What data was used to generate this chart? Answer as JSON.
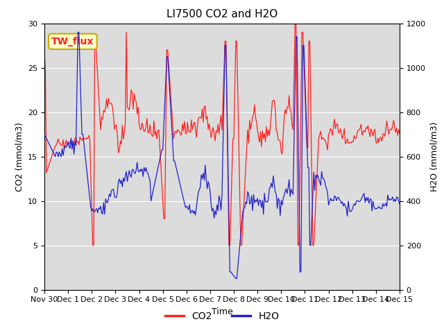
{
  "title": "LI7500 CO2 and H2O",
  "xlabel": "Time",
  "ylabel_left": "CO2 (mmol/m3)",
  "ylabel_right": "H2O (mmol/m3)",
  "ylim_left": [
    0,
    30
  ],
  "ylim_right": [
    0,
    1200
  ],
  "yticks_left": [
    0,
    5,
    10,
    15,
    20,
    25,
    30
  ],
  "yticks_right": [
    0,
    200,
    400,
    600,
    800,
    1000,
    1200
  ],
  "xtick_labels": [
    "Nov 30",
    "Dec 1",
    "Dec 2",
    "Dec 3",
    "Dec 4",
    "Dec 5",
    "Dec 6",
    "Dec 7",
    "Dec 8",
    "Dec 9",
    "Dec 10",
    "Dec 11",
    "Dec 12",
    "Dec 13",
    "Dec 14",
    "Dec 15"
  ],
  "legend_label_co2": "CO2",
  "legend_label_h2o": "H2O",
  "co2_color": "#ff2020",
  "h2o_color": "#2020cc",
  "annotation_text": "TW_flux",
  "annotation_bg": "#ffffcc",
  "annotation_border": "#ccaa00",
  "background_color": "#dcdcdc",
  "title_fontsize": 11,
  "axis_fontsize": 9,
  "tick_fontsize": 8,
  "legend_fontsize": 10
}
